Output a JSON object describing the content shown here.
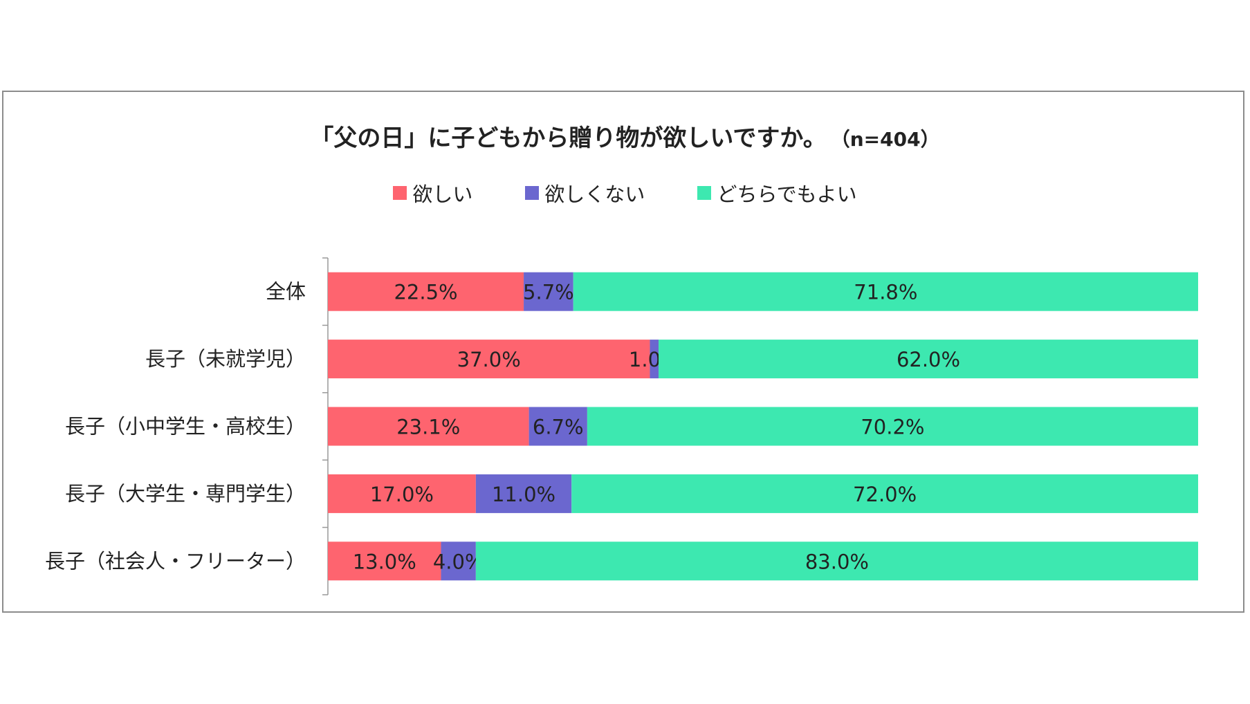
{
  "chart_data": {
    "type": "bar",
    "orientation": "horizontal",
    "stacked": "100%",
    "title": "「父の日」に子どもから贈り物が欲しいですか。",
    "subtitle": "（n=404）",
    "categories": [
      "全体",
      "長子（未就学児）",
      "長子（小中学生・高校生）",
      "長子（大学生・専門学生）",
      "長子（社会人・フリーター）"
    ],
    "series": [
      {
        "name": "欲しい",
        "color": "#fe646f",
        "values": [
          22.5,
          37.0,
          23.1,
          17.0,
          13.0
        ]
      },
      {
        "name": "欲しくない",
        "color": "#6b67cf",
        "values": [
          5.7,
          1.0,
          6.7,
          11.0,
          4.0
        ]
      },
      {
        "name": "どちらでもよい",
        "color": "#3de8b0",
        "values": [
          71.8,
          62.0,
          70.2,
          72.0,
          83.0
        ]
      }
    ],
    "xlim": [
      0,
      100
    ],
    "legend": "top",
    "grid": false,
    "data_labels": true
  }
}
